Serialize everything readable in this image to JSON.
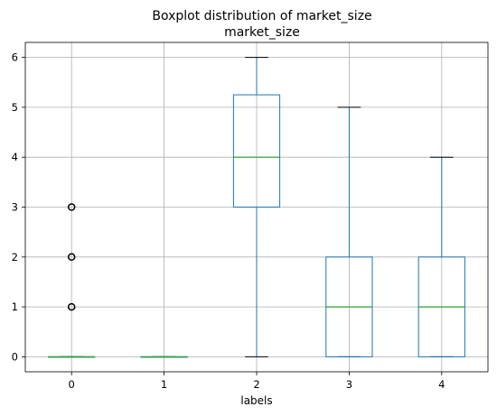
{
  "chart_data": {
    "type": "boxplot",
    "title": "Boxplot distribution of market_size",
    "subtitle": "market_size",
    "xlabel": "labels",
    "ylabel": "",
    "categories": [
      "0",
      "1",
      "2",
      "3",
      "4"
    ],
    "ylim": [
      -0.3,
      6.3
    ],
    "yticks": [
      0,
      1,
      2,
      3,
      4,
      5,
      6
    ],
    "grid": true,
    "boxes": [
      {
        "label": "0",
        "q1": 0,
        "median": 0,
        "q3": 0,
        "whisker_low": 0,
        "whisker_high": 0,
        "outliers": [
          1,
          2,
          3
        ]
      },
      {
        "label": "1",
        "q1": 0,
        "median": 0,
        "q3": 0,
        "whisker_low": 0,
        "whisker_high": 0,
        "outliers": []
      },
      {
        "label": "2",
        "q1": 3,
        "median": 4,
        "q3": 5.25,
        "whisker_low": 0,
        "whisker_high": 6,
        "outliers": []
      },
      {
        "label": "3",
        "q1": 0,
        "median": 1,
        "q3": 2,
        "whisker_low": 0,
        "whisker_high": 5,
        "outliers": []
      },
      {
        "label": "4",
        "q1": 0,
        "median": 1,
        "q3": 2,
        "whisker_low": 0,
        "whisker_high": 4,
        "outliers": []
      }
    ],
    "colors": {
      "box": "#1f77b4",
      "median": "#2ca02c",
      "cap": "#000000",
      "grid": "#b0b0b0",
      "outlier": "#000000"
    }
  }
}
